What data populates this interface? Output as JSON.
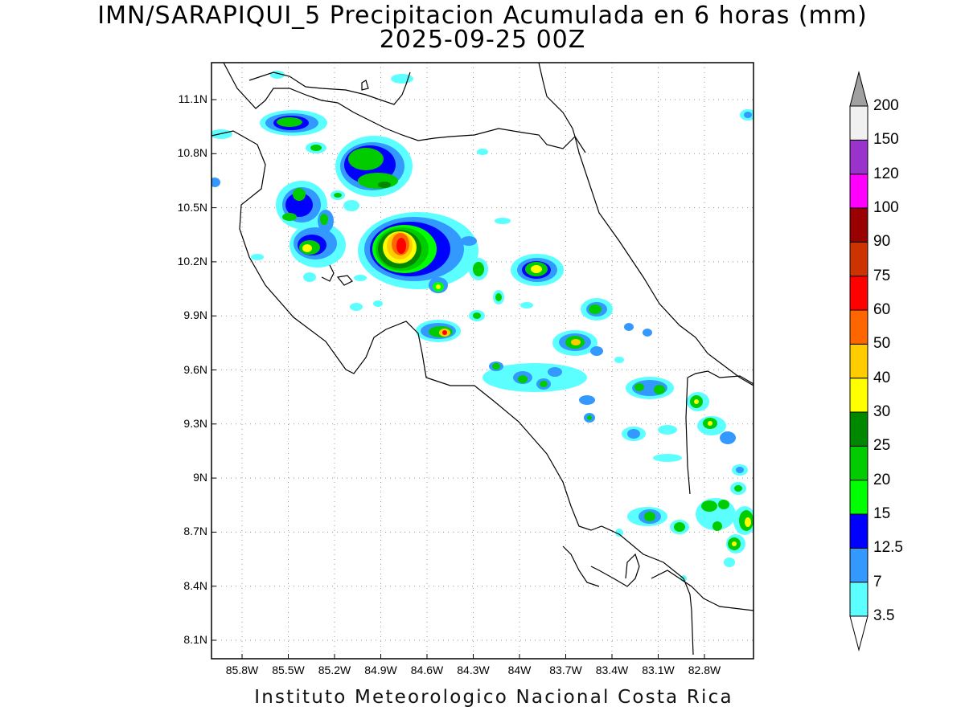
{
  "title_line1": "IMN/SARAPIQUI_5 Precipitacion Acumulada en 6 horas (mm)",
  "title_line2": "2025-09-25 00Z",
  "footer": "Instituto Meteorologico Nacional Costa Rica",
  "lat_labels": [
    "11.1N",
    "10.8N",
    "10.5N",
    "10.2N",
    "9.9N",
    "9.6N",
    "9.3N",
    "9N",
    "8.7N",
    "8.4N",
    "8.1N"
  ],
  "lon_labels": [
    "85.8W",
    "85.5W",
    "85.2W",
    "84.9W",
    "84.6W",
    "84.3W",
    "84W",
    "83.7W",
    "83.4W",
    "83.1W",
    "82.8W"
  ],
  "colorbar": {
    "levels": [
      "3.5",
      "7",
      "12.5",
      "15",
      "20",
      "25",
      "30",
      "40",
      "50",
      "60",
      "75",
      "90",
      "100",
      "120",
      "150",
      "200"
    ],
    "colors": [
      "#ffffff",
      "#5cffff",
      "#3399ff",
      "#0000ff",
      "#00ff00",
      "#00cc00",
      "#008800",
      "#ffff00",
      "#ffcc00",
      "#ff6600",
      "#ff0000",
      "#cc3300",
      "#990000",
      "#ff00ff",
      "#9933cc",
      "#f0f0f0",
      "#a0a0a0"
    ]
  },
  "colors": {
    "coastline": "#000000",
    "grid": "#999999"
  }
}
